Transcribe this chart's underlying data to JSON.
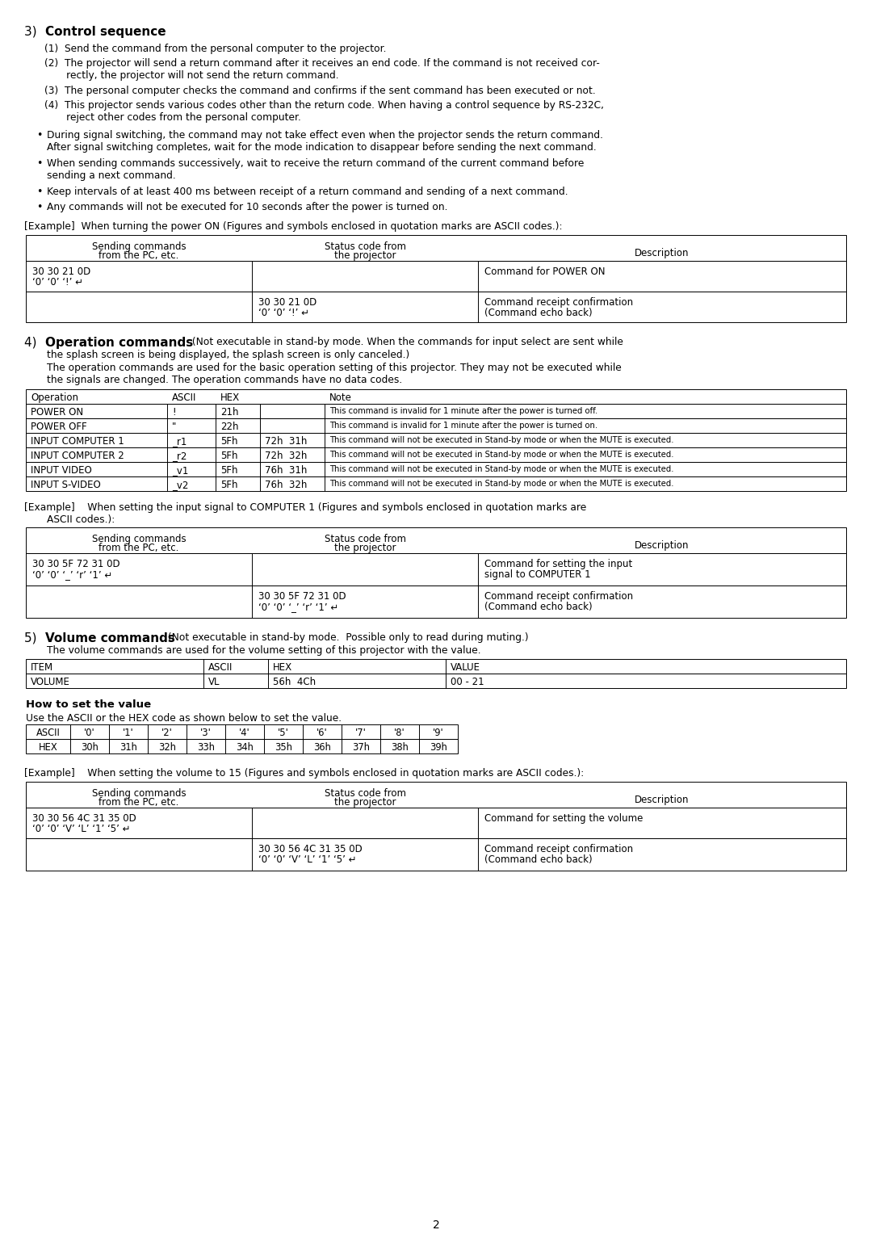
{
  "bg_color": "#ffffff",
  "text_color": "#000000",
  "page_number": "2",
  "section3_title_bold": "3) Control sequence",
  "section3_items": [
    "(1)  Send the command from the personal computer to the projector.",
    "(2)  The projector will send a return command after it receives an end code. If the command is not received cor-\n       rectly, the projector will not send the return command.",
    "(3)  The personal computer checks the command and confirms if the sent command has been executed or not.",
    "(4)  This projector sends various codes other than the return code. When having a control sequence by RS-232C,\n       reject other codes from the personal computer."
  ],
  "section3_bullets": [
    "During signal switching, the command may not take effect even when the projector sends the return command.\nAfter signal switching completes, wait for the mode indication to disappear before sending the next command.",
    "When sending commands successively, wait to receive the return command of the current command before\nsending a next command.",
    "Keep intervals of at least 400 ms between receipt of a return command and sending of a next command.",
    "Any commands will not be executed for 10 seconds after the power is turned on."
  ],
  "example1_label": "[Example]  When turning the power ON (Figures and symbols enclosed in quotation marks are ASCII codes.):",
  "table1_headers": [
    "Sending commands\nfrom the PC, etc.",
    "Status code from\nthe projector",
    "Description"
  ],
  "table1_rows": [
    [
      "30 30 21 0D\n‘0’ ‘0’ ‘!’ ↵",
      "",
      "Command for POWER ON"
    ],
    [
      "",
      "30 30 21 0D\n‘0’ ‘0’ ‘!’ ↵",
      "Command receipt confirmation\n(Command echo back)"
    ]
  ],
  "section4_title_bold": "4) Operation commands",
  "section4_subtitle": " (Not executable in stand-by mode. When the commands for input select are sent while\nthe splash screen is being displayed, the splash screen is only canceled.)",
  "section4_text": "The operation commands are used for the basic operation setting of this projector. They may not be executed while\nthe signals are changed. The operation commands have no data codes.",
  "table2_headers": [
    "Operation",
    "ASCII",
    "HEX",
    "",
    "Note"
  ],
  "table2_rows": [
    [
      "POWER ON",
      "!",
      "21h",
      "",
      "This command is invalid for 1 minute after the power is turned off."
    ],
    [
      "POWER OFF",
      "\"",
      "22h",
      "",
      "This command is invalid for 1 minute after the power is turned on."
    ],
    [
      "INPUT COMPUTER 1",
      "_r1",
      "5Fh",
      "72h  31h",
      "This command will not be executed in Stand-by mode or when the MUTE is executed."
    ],
    [
      "INPUT COMPUTER 2",
      "_r2",
      "5Fh",
      "72h  32h",
      "This command will not be executed in Stand-by mode or when the MUTE is executed."
    ],
    [
      "INPUT VIDEO",
      "_v1",
      "5Fh",
      "76h  31h",
      "This command will not be executed in Stand-by mode or when the MUTE is executed."
    ],
    [
      "INPUT S-VIDEO",
      "_v2",
      "5Fh",
      "76h  32h",
      "This command will not be executed in Stand-by mode or when the MUTE is executed."
    ]
  ],
  "example2_label": "[Example]    When setting the input signal to COMPUTER 1 (Figures and symbols enclosed in quotation marks are\n              ASCII codes.):",
  "table3_headers": [
    "Sending commands\nfrom the PC, etc.",
    "Status code from\nthe projector",
    "Description"
  ],
  "table3_rows": [
    [
      "30 30 5F 72 31 0D\n‘0’ ‘0’ ‘_’ ‘r’ ‘1’ ↵",
      "",
      "Command for setting the input\nsignal to COMPUTER 1"
    ],
    [
      "",
      "30 30 5F 72 31 0D\n‘0’ ‘0’ ‘_’ ‘r’ ‘1’ ↵",
      "Command receipt confirmation\n(Command echo back)"
    ]
  ],
  "section5_title_bold": "5) Volume commands",
  "section5_subtitle": " (Not executable in stand-by mode.  Possible only to read during muting.)",
  "section5_text": "The volume commands are used for the volume setting of this projector with the value.",
  "table4_headers": [
    "ITEM",
    "ASCII",
    "HEX",
    "VALUE"
  ],
  "table4_rows": [
    [
      "VOLUME",
      "VL",
      "56h  4Ch",
      "00 - 21"
    ]
  ],
  "howto_title": "How to set the value",
  "howto_text": "Use the ASCII or the HEX code as shown below to set the value.",
  "ascii_table_headers": [
    "ASCII",
    "'0'",
    "'1'",
    "'2'",
    "'3'",
    "'4'",
    "'5'",
    "'6'",
    "'7'",
    "'8'",
    "'9'"
  ],
  "hex_table_row": [
    "HEX",
    "30h",
    "31h",
    "32h",
    "33h",
    "34h",
    "35h",
    "36h",
    "37h",
    "38h",
    "39h"
  ],
  "example3_label": "[Example]    When setting the volume to 15 (Figures and symbols enclosed in quotation marks are ASCII codes.):",
  "table5_headers": [
    "Sending commands\nfrom the PC, etc.",
    "Status code from\nthe projector",
    "Description"
  ],
  "table5_rows": [
    [
      "30 30 56 4C 31 35 0D\n‘0’ ‘0’ ‘V’ ‘L’ ‘1’ ‘5’ ↵",
      "",
      "Command for setting the volume"
    ],
    [
      "",
      "30 30 56 4C 31 35 0D\n‘0’ ‘0’ ‘V’ ‘L’ ‘1’ ‘5’ ↵",
      "Command receipt confirmation\n(Command echo back)"
    ]
  ]
}
